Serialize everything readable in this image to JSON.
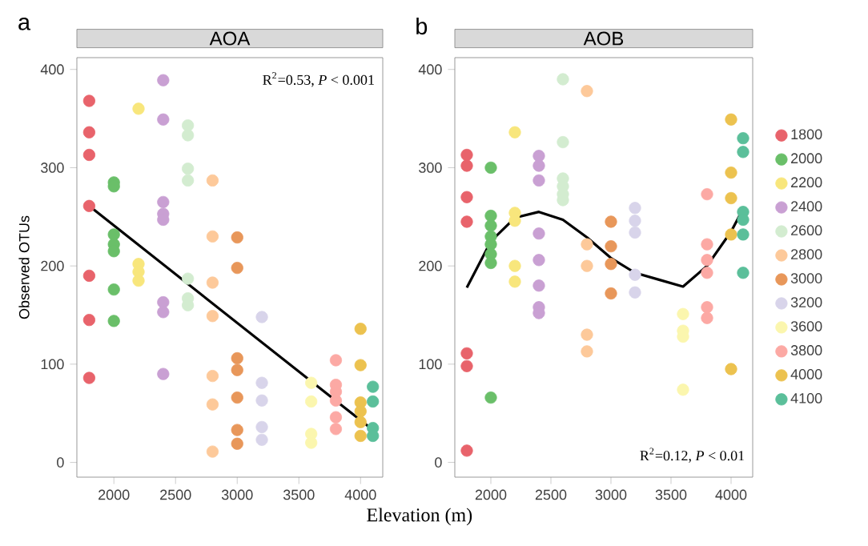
{
  "chart_data": [
    {
      "type": "scatter",
      "title": "AOA",
      "ylabel": "Observed OTUs",
      "xlabel": "Elevation (m)",
      "legend": false,
      "annotations": [
        "a",
        "R$^{2}$=0.53, *P* < 0.001"
      ],
      "xlim": [
        1700,
        4180
      ],
      "ylim": [
        -15,
        412
      ],
      "xticks": [
        2000,
        2500,
        3000,
        3500,
        4000
      ],
      "yticks": [
        0,
        100,
        200,
        300,
        400
      ],
      "series": [
        {
          "marker": "circle",
          "color": "#e8636b",
          "x": [
            1800,
            1800,
            1800,
            1800,
            1800,
            1800,
            1800
          ],
          "values": [
            368,
            336,
            313,
            261,
            190,
            145,
            86
          ]
        },
        {
          "marker": "circle",
          "color": "#6abf69",
          "x": [
            2000,
            2000,
            2000,
            2000,
            2000,
            2000,
            2000
          ],
          "values": [
            285,
            281,
            232,
            222,
            215,
            176,
            144
          ]
        },
        {
          "marker": "circle",
          "color": "#f8e67c",
          "x": [
            2200,
            2200,
            2200,
            2200
          ],
          "values": [
            360,
            202,
            194,
            185
          ]
        },
        {
          "marker": "circle",
          "color": "#c9a0d3",
          "x": [
            2400,
            2400,
            2400,
            2400,
            2400,
            2400,
            2400,
            2400
          ],
          "values": [
            389,
            349,
            265,
            253,
            247,
            163,
            153,
            90
          ]
        },
        {
          "marker": "circle",
          "color": "#d3ecd0",
          "x": [
            2600,
            2600,
            2600,
            2600,
            2600,
            2600,
            2600
          ],
          "values": [
            343,
            333,
            299,
            287,
            187,
            167,
            160
          ]
        },
        {
          "marker": "circle",
          "color": "#fdc99a",
          "x": [
            2800,
            2800,
            2800,
            2800,
            2800,
            2800,
            2800
          ],
          "values": [
            287,
            230,
            183,
            149,
            88,
            59,
            11
          ]
        },
        {
          "marker": "circle",
          "color": "#e8975a",
          "x": [
            3000,
            3000,
            3000,
            3000,
            3000,
            3000,
            3000
          ],
          "values": [
            229,
            198,
            106,
            94,
            66,
            33,
            19
          ]
        },
        {
          "marker": "circle",
          "color": "#d8d4ea",
          "x": [
            3200,
            3200,
            3200,
            3200,
            3200
          ],
          "values": [
            148,
            81,
            63,
            36,
            23
          ]
        },
        {
          "marker": "circle",
          "color": "#fbf6ae",
          "x": [
            3600,
            3600,
            3600,
            3600
          ],
          "values": [
            81,
            62,
            29,
            20
          ]
        },
        {
          "marker": "circle",
          "color": "#fca9a4",
          "x": [
            3800,
            3800,
            3800,
            3800,
            3800,
            3800
          ],
          "values": [
            104,
            79,
            72,
            63,
            46,
            34
          ]
        },
        {
          "marker": "circle",
          "color": "#ecc24f",
          "x": [
            4000,
            4000,
            4000,
            4000,
            4000,
            4000
          ],
          "values": [
            136,
            99,
            61,
            52,
            41,
            27
          ]
        },
        {
          "marker": "circle",
          "color": "#5bbf9a",
          "x": [
            4100,
            4100,
            4100,
            4100
          ],
          "values": [
            77,
            62,
            35,
            27
          ]
        },
        {
          "type": "line",
          "color": "#000000",
          "x": [
            1800,
            4100
          ],
          "values": [
            261,
            33
          ]
        }
      ]
    },
    {
      "type": "scatter",
      "title": "AOB",
      "legend": "right",
      "annotations": [
        "b",
        "R$^{2}$=0.12, *P* < 0.01"
      ],
      "xlim": [
        1700,
        4180
      ],
      "ylim": [
        -15,
        412
      ],
      "xticks": [
        2000,
        2500,
        3000,
        3500,
        4000
      ],
      "yticks": [
        0,
        100,
        200,
        300,
        400
      ],
      "series": [
        {
          "name": "1800",
          "marker": "circle",
          "color": "#e8636b",
          "x": [
            1800,
            1800,
            1800,
            1800,
            1800,
            1800,
            1800
          ],
          "values": [
            313,
            302,
            270,
            245,
            111,
            98,
            12
          ]
        },
        {
          "name": "2000",
          "marker": "circle",
          "color": "#6abf69",
          "x": [
            2000,
            2000,
            2000,
            2000,
            2000,
            2000,
            2000,
            2000
          ],
          "values": [
            300,
            251,
            241,
            230,
            222,
            212,
            203,
            66
          ]
        },
        {
          "name": "2200",
          "marker": "circle",
          "color": "#f8e67c",
          "x": [
            2200,
            2200,
            2200,
            2200,
            2200
          ],
          "values": [
            336,
            254,
            246,
            200,
            184
          ]
        },
        {
          "name": "2400",
          "marker": "circle",
          "color": "#c9a0d3",
          "x": [
            2400,
            2400,
            2400,
            2400,
            2400,
            2400,
            2400,
            2400
          ],
          "values": [
            312,
            302,
            287,
            233,
            206,
            180,
            158,
            152
          ]
        },
        {
          "name": "2600",
          "marker": "circle",
          "color": "#d3ecd0",
          "x": [
            2600,
            2600,
            2600,
            2600,
            2600,
            2600
          ],
          "values": [
            390,
            326,
            289,
            281,
            273,
            267
          ]
        },
        {
          "name": "2800",
          "marker": "circle",
          "color": "#fdc99a",
          "x": [
            2800,
            2800,
            2800,
            2800,
            2800
          ],
          "values": [
            378,
            222,
            200,
            130,
            113
          ]
        },
        {
          "name": "3000",
          "marker": "circle",
          "color": "#e8975a",
          "x": [
            3000,
            3000,
            3000,
            3000
          ],
          "values": [
            245,
            220,
            202,
            172
          ]
        },
        {
          "name": "3200",
          "marker": "circle",
          "color": "#d8d4ea",
          "x": [
            3200,
            3200,
            3200,
            3200,
            3200
          ],
          "values": [
            259,
            246,
            234,
            191,
            173
          ]
        },
        {
          "name": "3600",
          "marker": "circle",
          "color": "#fbf6ae",
          "x": [
            3600,
            3600,
            3600,
            3600
          ],
          "values": [
            151,
            134,
            128,
            74
          ]
        },
        {
          "name": "3800",
          "marker": "circle",
          "color": "#fca9a4",
          "x": [
            3800,
            3800,
            3800,
            3800,
            3800,
            3800
          ],
          "values": [
            273,
            222,
            206,
            193,
            158,
            147
          ]
        },
        {
          "name": "4000",
          "marker": "circle",
          "color": "#ecc24f",
          "x": [
            4000,
            4000,
            4000,
            4000,
            4000
          ],
          "values": [
            349,
            295,
            269,
            232,
            95
          ]
        },
        {
          "name": "4100",
          "marker": "circle",
          "color": "#5bbf9a",
          "x": [
            4100,
            4100,
            4100,
            4100,
            4100,
            4100
          ],
          "values": [
            330,
            316,
            255,
            247,
            232,
            193
          ]
        },
        {
          "type": "line",
          "color": "#000000",
          "x": [
            1800,
            2000,
            2200,
            2400,
            2600,
            2800,
            3000,
            3200,
            3400,
            3600,
            3800,
            4000,
            4100
          ],
          "values": [
            178,
            225,
            249,
            255,
            247,
            229,
            208,
            193,
            186,
            179,
            200,
            235,
            258
          ]
        }
      ]
    }
  ]
}
